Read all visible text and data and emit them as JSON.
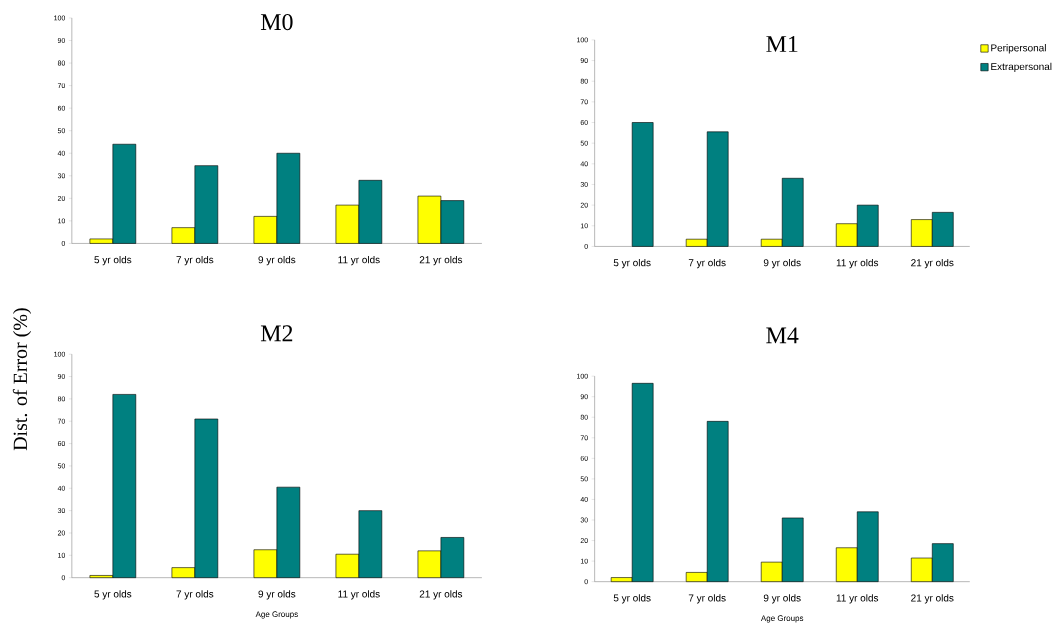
{
  "chart_data": [
    {
      "type": "bar",
      "title": "M0",
      "categories": [
        "5 yr olds",
        "7 yr olds",
        "9 yr olds",
        "11 yr olds",
        "21 yr olds"
      ],
      "ylim": [
        0,
        100
      ],
      "yticks": [
        0,
        10,
        20,
        30,
        40,
        50,
        60,
        70,
        80,
        90,
        100
      ],
      "grid": false,
      "legend": false,
      "series": [
        {
          "color": "#ffff00",
          "values": [
            2,
            7,
            12,
            17,
            21
          ]
        },
        {
          "color": "#008080",
          "values": [
            44,
            34.5,
            40,
            28,
            19
          ]
        }
      ]
    },
    {
      "type": "bar",
      "title": "M1",
      "categories": [
        "5 yr olds",
        "7 yr olds",
        "9 yr olds",
        "11 yr olds",
        "21 yr olds"
      ],
      "ylim": [
        0,
        100
      ],
      "yticks": [
        0,
        10,
        20,
        30,
        40,
        50,
        60,
        70,
        80,
        90,
        100
      ],
      "grid": false,
      "legend": "top right",
      "series": [
        {
          "name": "Peripersonal",
          "color": "#ffff00",
          "values": [
            null,
            3.5,
            3.5,
            11,
            13
          ]
        },
        {
          "name": "Extrapersonal",
          "color": "#008080",
          "values": [
            60,
            55.5,
            33,
            20,
            16.5
          ]
        }
      ]
    },
    {
      "type": "bar",
      "title": "M2",
      "xlabel": "Age Groups",
      "ylabel": "Dist. of Error (%)",
      "categories": [
        "5 yr olds",
        "7 yr olds",
        "9 yr olds",
        "11 yr olds",
        "21 yr olds"
      ],
      "ylim": [
        0,
        100
      ],
      "yticks": [
        0,
        10,
        20,
        30,
        40,
        50,
        60,
        70,
        80,
        90,
        100
      ],
      "grid": false,
      "legend": false,
      "series": [
        {
          "color": "#ffff00",
          "values": [
            1,
            4.5,
            12.5,
            10.5,
            12
          ]
        },
        {
          "color": "#008080",
          "values": [
            82,
            71,
            40.5,
            30,
            18
          ]
        }
      ]
    },
    {
      "type": "bar",
      "title": "M4",
      "xlabel": "Age Groups",
      "categories": [
        "5 yr olds",
        "7 yr olds",
        "9 yr olds",
        "11 yr olds",
        "21 yr olds"
      ],
      "ylim": [
        0,
        100
      ],
      "yticks": [
        0,
        10,
        20,
        30,
        40,
        50,
        60,
        70,
        80,
        90,
        100
      ],
      "grid": false,
      "legend": false,
      "series": [
        {
          "color": "#ffff00",
          "values": [
            2,
            4.5,
            9.5,
            16.5,
            11.5
          ]
        },
        {
          "color": "#008080",
          "values": [
            96.5,
            78,
            31,
            34,
            18.5
          ]
        }
      ]
    }
  ]
}
